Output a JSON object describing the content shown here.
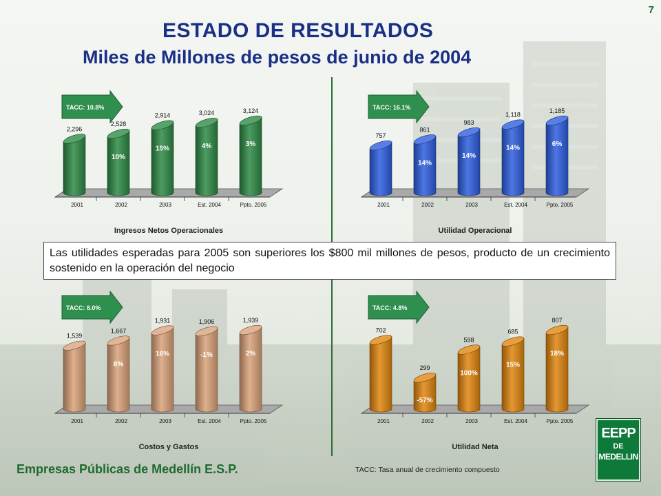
{
  "page_number": "7",
  "title": "ESTADO DE RESULTADOS",
  "subtitle": "Miles de Millones de pesos de junio de 2004",
  "callout": "Las utilidades esperadas para 2005 son superiores los $800 mil millones de pesos, producto de un crecimiento sostenido en la operación del negocio",
  "footer": {
    "company": "Empresas Públicas de Medellín E.S.P.",
    "note": "TACC: Tasa anual de crecimiento compuesto"
  },
  "logo": {
    "line1": "EEPP",
    "line2": "DE",
    "line3": "MEDELLIN"
  },
  "colors": {
    "title": "#1a2f86",
    "green_text": "#1d6b2e"
  },
  "chart_data": [
    {
      "type": "bar",
      "title": "Ingresos Netos Operacionales",
      "tacc": "TACC: 10.8%",
      "categories": [
        "2001",
        "2002",
        "2003",
        "Est. 2004",
        "Ppto. 2005"
      ],
      "values": [
        2296,
        2528,
        2914,
        3024,
        3124
      ],
      "value_labels": [
        "2,296",
        "2,528",
        "2,914",
        "3,024",
        "3,124"
      ],
      "growth_labels": [
        "",
        "10%",
        "15%",
        "4%",
        "3%"
      ],
      "color": "#2e8b46"
    },
    {
      "type": "bar",
      "title": "Utilidad Operacional",
      "tacc": "TACC: 16.1%",
      "categories": [
        "2001",
        "2002",
        "2003",
        "Est. 2004",
        "Ppto. 2005"
      ],
      "values": [
        757,
        861,
        983,
        1118,
        1185
      ],
      "value_labels": [
        "757",
        "861",
        "983",
        "1,118",
        "1,185"
      ],
      "growth_labels": [
        "",
        "14%",
        "14%",
        "14%",
        "6%"
      ],
      "color": "#2f5fe0"
    },
    {
      "type": "bar",
      "title": "Costos y Gastos",
      "tacc": "TACC: 8.0%",
      "categories": [
        "2001",
        "2002",
        "2003",
        "Est. 2004",
        "Ppto. 2005"
      ],
      "values": [
        1539,
        1667,
        1931,
        1906,
        1939
      ],
      "value_labels": [
        "1,539",
        "1,667",
        "1,931",
        "1,906",
        "1,939"
      ],
      "growth_labels": [
        "",
        "8%",
        "16%",
        "-1%",
        "2%"
      ],
      "color": "#d9a27a"
    },
    {
      "type": "bar",
      "title": "Utilidad Neta",
      "tacc": "TACC: 4.8%",
      "categories": [
        "2001",
        "2002",
        "2003",
        "Est. 2004",
        "Ppto. 2005"
      ],
      "values": [
        702,
        299,
        598,
        685,
        807
      ],
      "value_labels": [
        "702",
        "299",
        "598",
        "685",
        "807"
      ],
      "growth_labels": [
        "",
        "-57%",
        "100%",
        "15%",
        "18%"
      ],
      "color": "#e0860f"
    }
  ]
}
